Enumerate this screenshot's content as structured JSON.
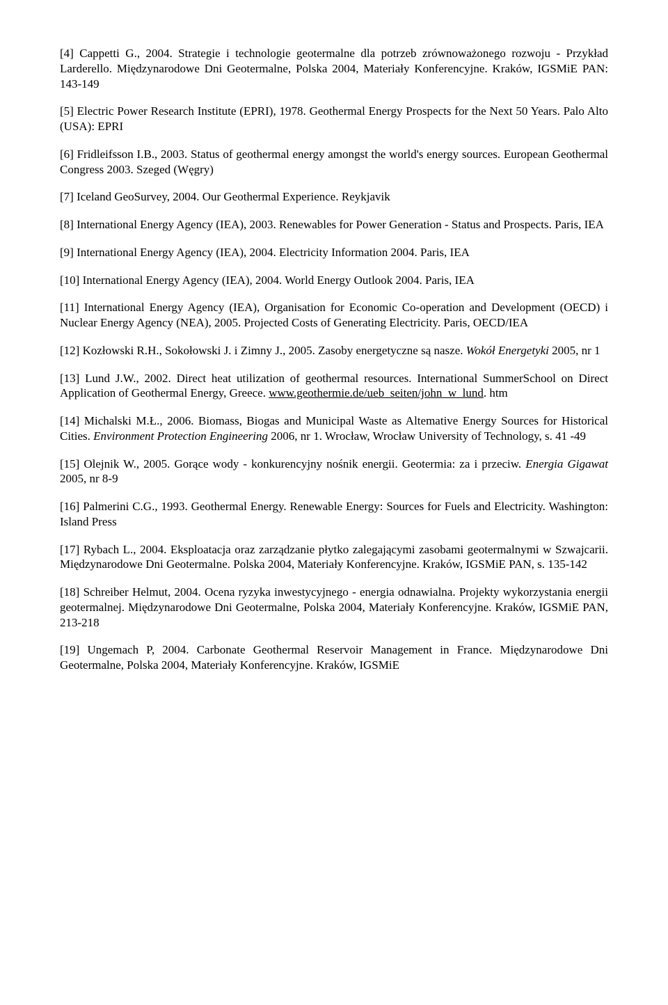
{
  "refs": [
    "[4] Cappetti G., 2004. Strategie i technologie geotermalne dla potrzeb zrównoważonego rozwoju - Przykład Larderello. Międzynarodowe Dni Geotermalne, Polska 2004, Materiały Konferencyjne. Kraków, IGSMiE PAN: 143-149",
    "[5] Electric Power Research Institute (EPRI), 1978. Geothermal Energy Prospects for the Next 50 Years. Palo Alto (USA): EPRI",
    "[6] Fridleifsson I.B., 2003. Status of geothermal energy amongst the world's energy sources. European Geothermal Congress 2003. Szeged (Węgry)",
    "[7] Iceland GeoSurvey, 2004. Our Geothermal Experience. Reykjavik",
    "[8] International Energy Agency (IEA), 2003. Renewables for Power Generation - Status and Prospects. Paris, IEA",
    "[9] International Energy Agency (IEA), 2004. Electricity Information 2004. Paris, IEA",
    "[10] International Energy Agency (IEA), 2004. World Energy Outlook 2004. Paris, IEA",
    "[11] International Energy Agency (IEA), Organisation for Economic Co-operation and Development (OECD) i Nuclear Energy Agency (NEA), 2005. Projected Costs of Generating Electricity. Paris, OECD/IEA",
    "",
    "",
    "",
    "",
    "[16] Palmerini C.G., 1993. Geothermal Energy. Renewable Energy: Sources for Fuels and Electricity. Washington: Island Press",
    "[17] Rybach L., 2004. Eksploatacja oraz zarządzanie płytko zalegającymi zasobami geotermalnymi w Szwajcarii. Międzynarodowe Dni Geotermalne. Polska 2004, Materiały Konferencyjne. Kraków, IGSMiE PAN, s. 135-142",
    "[18] Schreiber Helmut, 2004. Ocena ryzyka inwestycyjnego - energia odnawialna. Projekty wykorzystania energii geotermalnej. Międzynarodowe Dni Geotermalne, Polska 2004, Materiały Konferencyjne. Kraków, IGSMiE PAN, 213-218",
    "[19] Ungemach P, 2004. Carbonate Geothermal Reservoir Management in France. Międzynarodowe Dni Geotermalne, Polska 2004, Materiały Konferencyjne. Kraków, IGSMiE"
  ],
  "ref12": {
    "pre": "[12] Kozłowski R.H., Sokołowski J. i Zimny J., 2005. Zasoby energetyczne są nasze. ",
    "italic": "Wokół Energetyki",
    "post": " 2005, nr 1"
  },
  "ref13": {
    "pre": "[13] Lund J.W., 2002. Direct heat utilization of geothermal resources. International SummerSchool on Direct Application of Geothermal Energy, Greece. ",
    "link": "www.geothermie.de/ueb_seiten/john_w_lund",
    "post": ". htm"
  },
  "ref14": {
    "pre": "[14] Michalski M.Ł., 2006. Biomass, Biogas and Municipal Waste as Altemative Energy Sources for Historical Cities. ",
    "italic": "Environment Protection Engineering",
    "post": " 2006, nr 1. Wrocław, Wrocław University of Technology, s. 41 -49"
  },
  "ref15": {
    "pre": "[15] Olejnik W., 2005. Gorące wody - konkurencyjny nośnik energii. Geotermia: za i przeciw. ",
    "italic": "Energia Gigawat",
    "post": " 2005, nr 8-9"
  }
}
